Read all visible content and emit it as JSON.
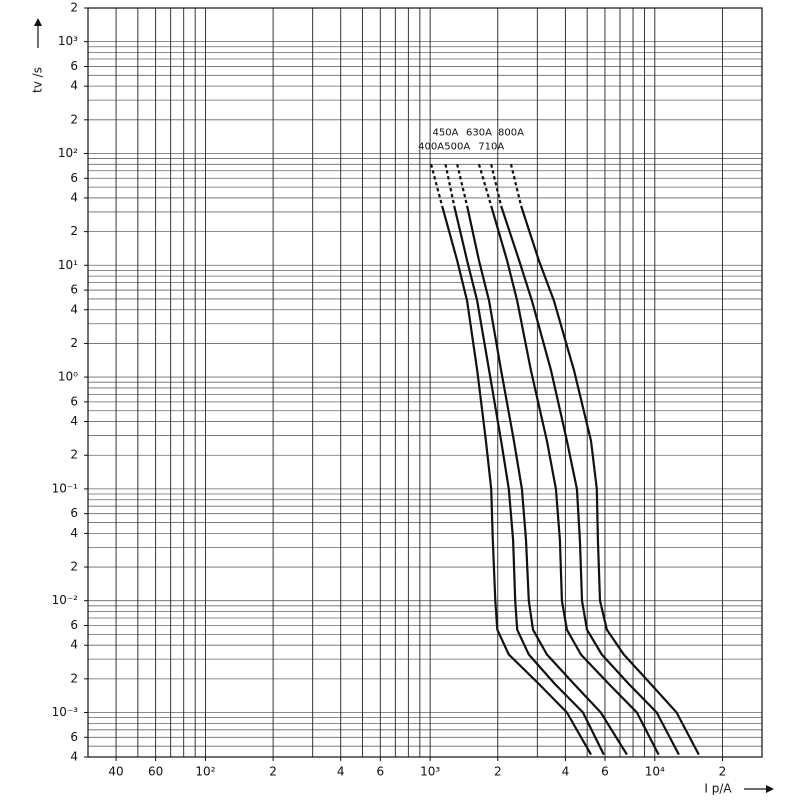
{
  "chart_data": {
    "type": "line",
    "x_label": "I p/A",
    "y_label": "tv /s",
    "log_x": true,
    "log_y": true,
    "xlim": [
      30,
      30000
    ],
    "ylim": [
      0.0004,
      2000
    ],
    "xticks": [
      40.0,
      60.0,
      {
        "value": 100,
        "label": "10²"
      },
      {
        "value": 200,
        "label": "2"
      },
      {
        "value": 400,
        "label": "4"
      },
      {
        "value": 600,
        "label": "6"
      },
      {
        "value": 1000,
        "label": "10³"
      },
      {
        "value": 2000,
        "label": "2"
      },
      {
        "value": 4000,
        "label": "4"
      },
      {
        "value": 6000,
        "label": "6"
      },
      {
        "value": 10000,
        "label": "10⁴"
      },
      {
        "value": 20000,
        "label": "2"
      }
    ],
    "yticks": [
      {
        "value": 2000,
        "label": "2"
      },
      {
        "value": 1000,
        "label": "10³"
      },
      {
        "value": 600,
        "label": "6"
      },
      {
        "value": 400,
        "label": "4"
      },
      {
        "value": 200,
        "label": "2"
      },
      {
        "value": 100,
        "label": "10²"
      },
      {
        "value": 60,
        "label": "6"
      },
      {
        "value": 40,
        "label": "4"
      },
      {
        "value": 20,
        "label": "2"
      },
      {
        "value": 10,
        "label": "10¹"
      },
      6,
      4,
      2,
      {
        "value": 1,
        "label": "10⁰"
      },
      {
        "value": 0.6,
        "label": "6"
      },
      {
        "value": 0.4,
        "label": "4"
      },
      {
        "value": 0.2,
        "label": "2"
      },
      {
        "value": 0.1,
        "label": "10⁻¹"
      },
      {
        "value": 0.06,
        "label": "6"
      },
      {
        "value": 0.04,
        "label": "4"
      },
      {
        "value": 0.02,
        "label": "2"
      },
      {
        "value": 0.01,
        "label": "10⁻²"
      },
      {
        "value": 0.006,
        "label": "6"
      },
      {
        "value": 0.004,
        "label": "4"
      },
      {
        "value": 0.002,
        "label": "2"
      },
      {
        "value": 0.001,
        "label": "10⁻³"
      },
      {
        "value": 0.0006,
        "label": "6"
      },
      {
        "value": 0.0004,
        "label": "4"
      }
    ],
    "xgrid": [
      30,
      40,
      50,
      60,
      70,
      80,
      90,
      100,
      200,
      300,
      400,
      500,
      600,
      700,
      800,
      900,
      1000,
      2000,
      3000,
      4000,
      5000,
      6000,
      7000,
      8000,
      9000,
      10000,
      20000,
      30000
    ],
    "ygrid": [
      0.0004,
      0.0005,
      0.0006,
      0.0007,
      0.0008,
      0.0009,
      0.001,
      0.002,
      0.003,
      0.004,
      0.005,
      0.006,
      0.007,
      0.008,
      0.009,
      0.01,
      0.02,
      0.03,
      0.04,
      0.05,
      0.06,
      0.07,
      0.08,
      0.09,
      0.1,
      0.2,
      0.3,
      0.4,
      0.5,
      0.6,
      0.7,
      0.8,
      0.9,
      1,
      2,
      3,
      4,
      5,
      6,
      7,
      8,
      9,
      10,
      20,
      30,
      40,
      50,
      60,
      70,
      80,
      90,
      100,
      200,
      300,
      400,
      500,
      600,
      700,
      800,
      900,
      1000,
      2000
    ],
    "dashed_first_segment": true,
    "series": [
      {
        "name": "400A",
        "color": "#111111",
        "x": [
          1010,
          1130,
          1320,
          1460,
          1620,
          1770,
          1870,
          1900,
          1950,
          1990,
          2240,
          3050,
          4060,
          5200
        ],
        "values": [
          80,
          34,
          11,
          4.8,
          1.15,
          0.27,
          0.1,
          0.035,
          0.01,
          0.0055,
          0.0033,
          0.0018,
          0.001,
          0.00042
        ]
      },
      {
        "name": "450A",
        "color": "#111111",
        "x": [
          1170,
          1280,
          1460,
          1620,
          1830,
          2070,
          2240,
          2340,
          2390,
          2440,
          2750,
          3590,
          4790,
          5930
        ],
        "values": [
          80,
          34,
          11,
          4.8,
          1.15,
          0.27,
          0.1,
          0.035,
          0.01,
          0.0055,
          0.0033,
          0.0018,
          0.001,
          0.00042
        ]
      },
      {
        "name": "500A",
        "color": "#111111",
        "x": [
          1320,
          1460,
          1650,
          1830,
          2070,
          2360,
          2560,
          2670,
          2750,
          2870,
          3310,
          4370,
          5750,
          7510
        ],
        "values": [
          80,
          34,
          11,
          4.8,
          1.15,
          0.27,
          0.1,
          0.035,
          0.01,
          0.0055,
          0.0033,
          0.0018,
          0.001,
          0.00042
        ]
      },
      {
        "name": "630A",
        "color": "#111111",
        "x": [
          1650,
          1870,
          2200,
          2440,
          2810,
          3310,
          3630,
          3780,
          3860,
          4060,
          4690,
          6250,
          8320,
          10400
        ],
        "values": [
          80,
          34,
          11,
          4.8,
          1.15,
          0.27,
          0.1,
          0.035,
          0.01,
          0.0055,
          0.0033,
          0.0018,
          0.001,
          0.00042
        ]
      },
      {
        "name": "710A",
        "color": "#111111",
        "x": [
          1870,
          2070,
          2490,
          2840,
          3450,
          4060,
          4500,
          4640,
          4740,
          4990,
          5810,
          7660,
          10200,
          12800
        ],
        "values": [
          80,
          34,
          11,
          4.8,
          1.15,
          0.27,
          0.1,
          0.035,
          0.01,
          0.0055,
          0.0033,
          0.0018,
          0.001,
          0.00042
        ]
      },
      {
        "name": "800A",
        "color": "#111111",
        "x": [
          2290,
          2540,
          3050,
          3560,
          4370,
          5200,
          5520,
          5580,
          5700,
          6120,
          7280,
          9600,
          12500,
          15700
        ],
        "values": [
          80,
          34,
          11,
          4.8,
          1.15,
          0.27,
          0.1,
          0.035,
          0.01,
          0.0055,
          0.0033,
          0.0018,
          0.001,
          0.00042
        ]
      }
    ]
  }
}
